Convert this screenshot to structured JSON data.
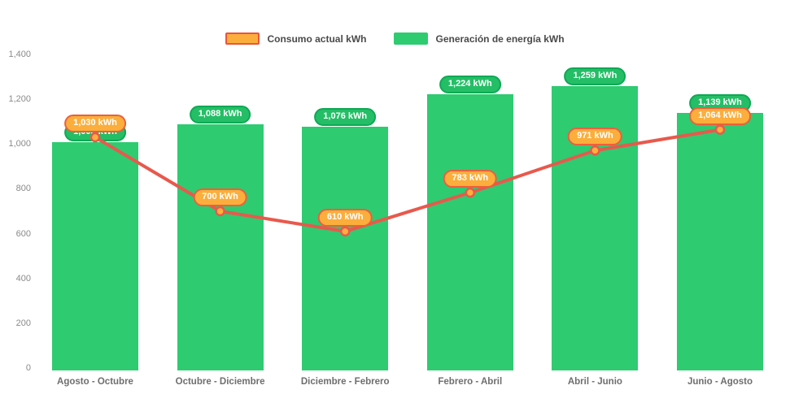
{
  "legend": {
    "items": [
      {
        "id": "consumo",
        "label": "Consumo actual kWh",
        "swatch_fill": "#FBAE3C",
        "swatch_border": "#E8553D"
      },
      {
        "id": "generacion",
        "label": "Generación de energía kWh",
        "swatch_fill": "#2ECB71",
        "swatch_border": "#2ECB71"
      }
    ]
  },
  "chart_data": {
    "type": "bar+line",
    "title": "",
    "xlabel": "",
    "ylabel": "",
    "categories": [
      "Agosto - Octubre",
      "Octubre - Diciembre",
      "Diciembre - Febrero",
      "Febrero - Abril",
      "Abril - Junio",
      "Junio - Agosto"
    ],
    "series": [
      {
        "name": "Generación de energía kWh",
        "type": "bar",
        "color": "#2ECB71",
        "values": [
          1008,
          1088,
          1076,
          1224,
          1259,
          1139
        ],
        "labels": [
          "1,008 kWh",
          "1,088 kWh",
          "1,076 kWh",
          "1,224 kWh",
          "1,259 kWh",
          "1,139 kWh"
        ],
        "label_bg": "#24BE66",
        "label_border": "#0FA855",
        "label_text_color": "#FFFFFF"
      },
      {
        "name": "Consumo actual kWh",
        "type": "line",
        "color": "#E8594C",
        "marker_fill": "#FFB03B",
        "marker_border": "#E8594C",
        "values": [
          1030,
          700,
          610,
          783,
          971,
          1064
        ],
        "labels": [
          "1,030 kWh",
          "700 kWh",
          "610 kWh",
          "783 kWh",
          "971 kWh",
          "1,064 kWh"
        ],
        "label_bg": "#FBAE3C",
        "label_border": "#EC5F3D",
        "label_text_color": "#FFFFFF"
      }
    ],
    "ylim": [
      0,
      1400
    ],
    "yticks": {
      "values": [
        0,
        200,
        400,
        600,
        800,
        1000,
        1200,
        1400
      ],
      "labels": [
        "0",
        "200",
        "400",
        "600",
        "800",
        "1,000",
        "1,200",
        "1,400"
      ]
    },
    "grid": false,
    "legend_position": "top-center"
  },
  "style": {
    "axis_tick_color": "#8a8a8a",
    "category_label_color": "#6e6e6e",
    "legend_text_color": "#4a4a4a",
    "background": "#ffffff"
  }
}
